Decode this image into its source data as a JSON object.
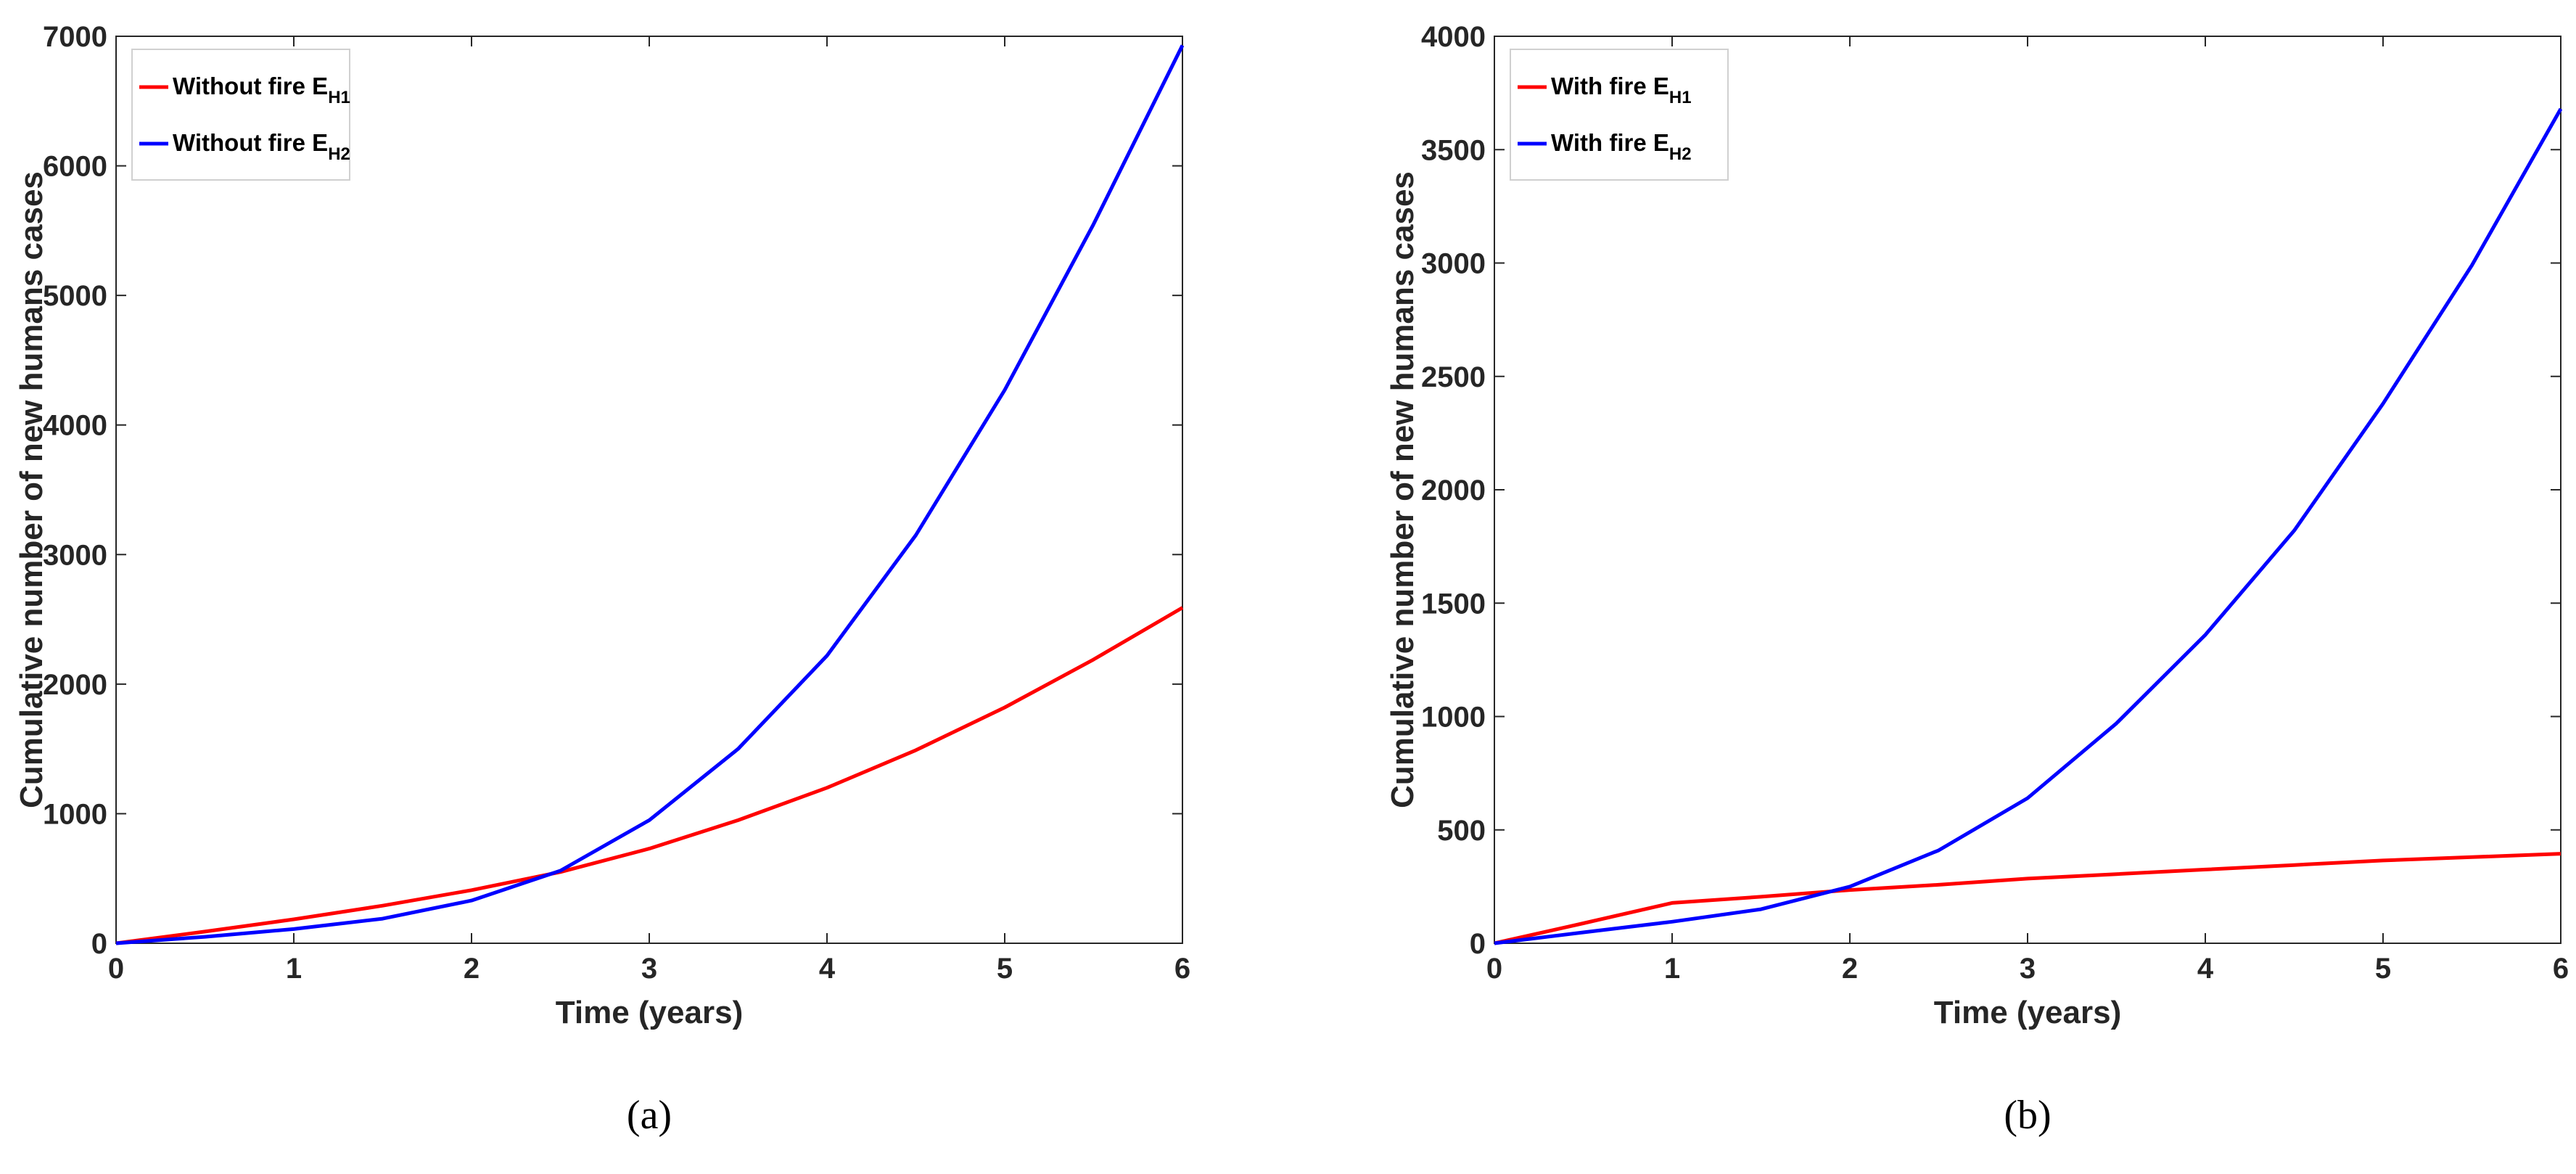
{
  "chart_data": [
    {
      "type": "line",
      "caption": "(a)",
      "xlabel": "Time (years)",
      "ylabel": "Cumulative number of new humans cases",
      "xlim": [
        0,
        6
      ],
      "ylim": [
        0,
        7000
      ],
      "xticks": [
        0,
        1,
        2,
        3,
        4,
        5,
        6
      ],
      "yticks": [
        0,
        1000,
        2000,
        3000,
        4000,
        5000,
        6000,
        7000
      ],
      "grid": false,
      "legend_position": "top-left",
      "series": [
        {
          "name": "Without fire E",
          "subscript": "H1",
          "color": "#ff0000",
          "x": [
            0,
            0.5,
            1,
            1.5,
            2,
            2.5,
            3,
            3.5,
            4,
            4.5,
            5,
            5.5,
            6
          ],
          "y": [
            0,
            90,
            185,
            290,
            410,
            550,
            730,
            950,
            1200,
            1490,
            1820,
            2190,
            2590
          ]
        },
        {
          "name": "Without fire E",
          "subscript": "H2",
          "color": "#0000ff",
          "x": [
            0,
            0.5,
            1,
            1.5,
            2,
            2.5,
            3,
            3.5,
            4,
            4.5,
            5,
            5.5,
            6
          ],
          "y": [
            0,
            50,
            110,
            190,
            330,
            560,
            950,
            1500,
            2220,
            3150,
            4270,
            5550,
            6930
          ]
        }
      ]
    },
    {
      "type": "line",
      "caption": "(b)",
      "xlabel": "Time (years)",
      "ylabel": "Cumulative number of new humans cases",
      "xlim": [
        0,
        6
      ],
      "ylim": [
        0,
        4000
      ],
      "xticks": [
        0,
        1,
        2,
        3,
        4,
        5,
        6
      ],
      "yticks": [
        0,
        500,
        1000,
        1500,
        2000,
        2500,
        3000,
        3500,
        4000
      ],
      "grid": false,
      "legend_position": "top-left",
      "series": [
        {
          "name": "With fire E",
          "subscript": "H1",
          "color": "#ff0000",
          "x": [
            0,
            0.5,
            1,
            1.5,
            2,
            2.5,
            3,
            3.5,
            4,
            4.5,
            5,
            5.5,
            6
          ],
          "y": [
            0,
            88,
            178,
            205,
            235,
            258,
            285,
            305,
            325,
            345,
            365,
            380,
            395
          ]
        },
        {
          "name": "With fire E",
          "subscript": "H2",
          "color": "#0000ff",
          "x": [
            0,
            0.5,
            1,
            1.5,
            2,
            2.5,
            3,
            3.5,
            4,
            4.5,
            5,
            5.5,
            6
          ],
          "y": [
            0,
            48,
            95,
            150,
            250,
            410,
            640,
            970,
            1360,
            1820,
            2380,
            2990,
            3680
          ]
        }
      ]
    }
  ]
}
